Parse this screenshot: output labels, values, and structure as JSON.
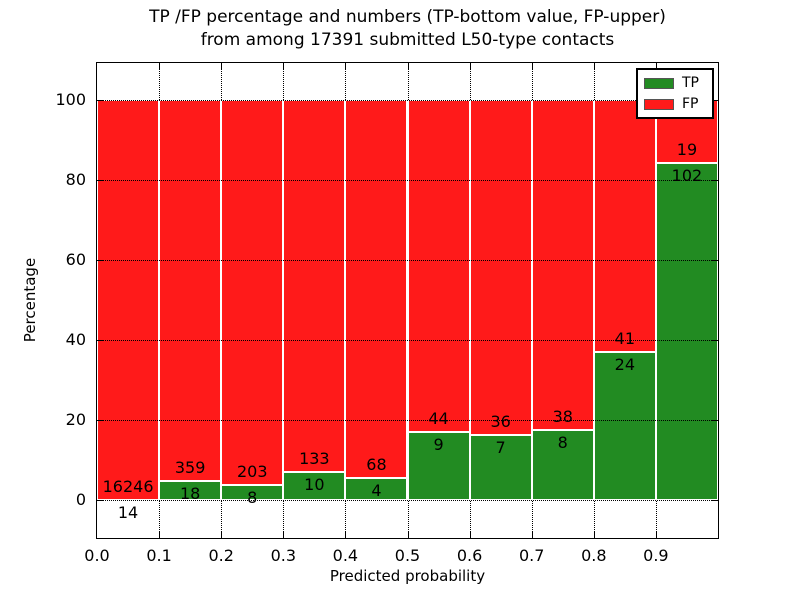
{
  "title": {
    "line1": "TP /FP percentage and numbers (TP-bottom value, FP-upper)",
    "line2": "from among 17391 submitted L50-type contacts"
  },
  "legend": {
    "items": [
      {
        "label": "TP",
        "color": "#228b22"
      },
      {
        "label": "FP",
        "color": "#ff1a1a"
      }
    ],
    "position": "upper right"
  },
  "colors": {
    "tp": "#228b22",
    "fp": "#ff1a1a",
    "background": "#ffffff",
    "text": "#000000"
  },
  "chart_data": {
    "type": "bar",
    "stacked": true,
    "title": "TP /FP percentage and numbers (TP-bottom value, FP-upper) from among 17391 submitted L50-type contacts",
    "xlabel": "Predicted probability",
    "ylabel": "Percentage",
    "x_tick_labels": [
      "0.0",
      "0.1",
      "0.2",
      "0.3",
      "0.4",
      "0.5",
      "0.6",
      "0.7",
      "0.8",
      "0.9"
    ],
    "y_tick_labels": [
      "0",
      "20",
      "40",
      "60",
      "80",
      "100"
    ],
    "y_ticks": [
      0,
      20,
      40,
      60,
      80,
      100
    ],
    "xlim": [
      0.0,
      1.0
    ],
    "ylim": [
      -10,
      109
    ],
    "grid": "dotted, both axes, drawn over bars",
    "categories": [
      "0.0-0.1",
      "0.1-0.2",
      "0.2-0.3",
      "0.3-0.4",
      "0.4-0.5",
      "0.5-0.6",
      "0.6-0.7",
      "0.7-0.8",
      "0.8-0.9",
      "0.9-1.0"
    ],
    "series": [
      {
        "name": "TP",
        "color": "#228b22",
        "counts": [
          14,
          18,
          8,
          10,
          4,
          9,
          7,
          8,
          24,
          102
        ],
        "pct": [
          0.09,
          4.77,
          3.79,
          6.99,
          5.56,
          16.98,
          16.28,
          17.39,
          36.92,
          84.3
        ]
      },
      {
        "name": "FP",
        "color": "#ff1a1a",
        "counts": [
          16246,
          359,
          203,
          133,
          68,
          44,
          36,
          38,
          41,
          19
        ],
        "pct": [
          99.91,
          95.23,
          96.21,
          93.01,
          94.44,
          83.02,
          83.72,
          82.61,
          63.08,
          15.7
        ]
      }
    ],
    "annotation_rule": "FP count printed just above TP/FP boundary, TP count just below boundary"
  }
}
